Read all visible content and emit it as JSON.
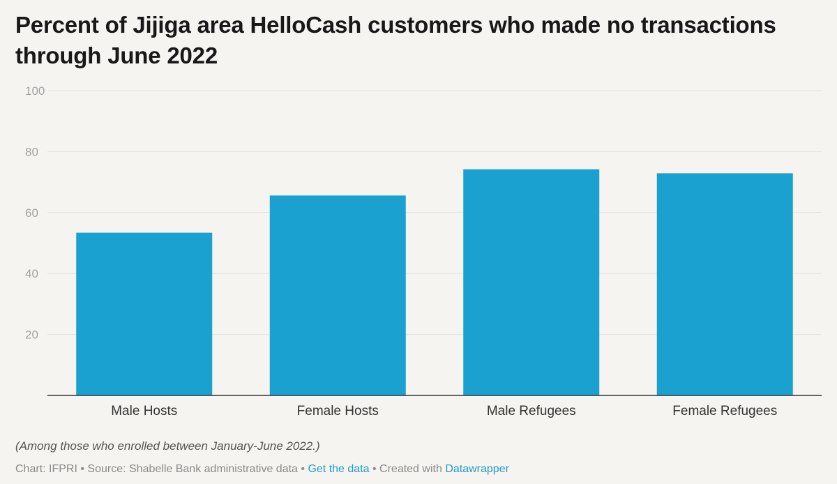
{
  "title": "Percent of Jijiga area HelloCash customers who made no transactions through June 2022",
  "note": "(Among those who enrolled between January-June 2022.)",
  "footer": {
    "chart_credit": "Chart: IFPRI",
    "separator": "•",
    "source": "Source: Shabelle Bank administrative data",
    "get_data_link": "Get the data",
    "created_with": "Created with",
    "datawrapper_link": "Datawrapper"
  },
  "colors": {
    "bar": "#1ba1cf",
    "grid": "#e2e2e2",
    "axis": "#333333",
    "link": "#1f9bc6"
  },
  "chart_data": {
    "type": "bar",
    "title": "Percent of Jijiga area HelloCash customers who made no transactions through June 2022",
    "xlabel": "",
    "ylabel": "",
    "categories": [
      "Male Hosts",
      "Female Hosts",
      "Male Refugees",
      "Female Refugees"
    ],
    "values": [
      53.4,
      65.6,
      74.2,
      72.9
    ],
    "ylim": [
      0,
      100
    ],
    "yticks": [
      20,
      40,
      60,
      80,
      100
    ],
    "grid": true,
    "legend": "none"
  }
}
